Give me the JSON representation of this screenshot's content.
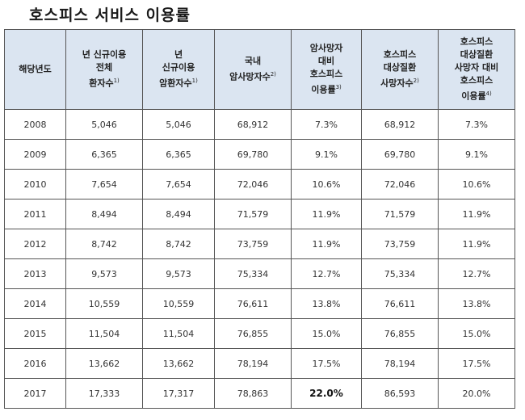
{
  "title": "호스피스 서비스 이용률",
  "table": {
    "headers": [
      {
        "lines": [
          "해당년도"
        ],
        "sup": ""
      },
      {
        "lines": [
          "년 신규이용",
          "전체",
          "환자수"
        ],
        "sup": "1)"
      },
      {
        "lines": [
          "년",
          "신규이용",
          "암환자수"
        ],
        "sup": "1)"
      },
      {
        "lines": [
          "국내",
          "암사망자수"
        ],
        "sup": "2)"
      },
      {
        "lines": [
          "암사망자",
          "대비",
          "호스피스",
          "이용률"
        ],
        "sup": "3)"
      },
      {
        "lines": [
          "호스피스",
          "대상질환",
          "사망자수"
        ],
        "sup": "2)"
      },
      {
        "lines": [
          "호스피스",
          "대상질환",
          "사망자 대비",
          "호스피스",
          "이용률"
        ],
        "sup": "4)"
      }
    ],
    "rows": [
      {
        "cells": [
          "2008",
          "5,046",
          "5,046",
          "68,912",
          "7.3%",
          "68,912",
          "7.3%"
        ]
      },
      {
        "cells": [
          "2009",
          "6,365",
          "6,365",
          "69,780",
          "9.1%",
          "69,780",
          "9.1%"
        ]
      },
      {
        "cells": [
          "2010",
          "7,654",
          "7,654",
          "72,046",
          "10.6%",
          "72,046",
          "10.6%"
        ]
      },
      {
        "cells": [
          "2011",
          "8,494",
          "8,494",
          "71,579",
          "11.9%",
          "71,579",
          "11.9%"
        ]
      },
      {
        "cells": [
          "2012",
          "8,742",
          "8,742",
          "73,759",
          "11.9%",
          "73,759",
          "11.9%"
        ]
      },
      {
        "cells": [
          "2013",
          "9,573",
          "9,573",
          "75,334",
          "12.7%",
          "75,334",
          "12.7%"
        ]
      },
      {
        "cells": [
          "2014",
          "10,559",
          "10,559",
          "76,611",
          "13.8%",
          "76,611",
          "13.8%"
        ]
      },
      {
        "cells": [
          "2015",
          "11,504",
          "11,504",
          "76,855",
          "15.0%",
          "76,855",
          "15.0%"
        ]
      },
      {
        "cells": [
          "2016",
          "13,662",
          "13,662",
          "78,194",
          "17.5%",
          "78,194",
          "17.5%"
        ]
      },
      {
        "cells": [
          "2017",
          "17,333",
          "17,317",
          "78,863",
          "22.0%",
          "86,593",
          "20.0%"
        ]
      }
    ],
    "emphasized_cells": [
      {
        "row": 9,
        "col": 4
      }
    ]
  },
  "colors": {
    "header_background": "#dbe5f1",
    "border": "#555555",
    "text": "#333333"
  }
}
